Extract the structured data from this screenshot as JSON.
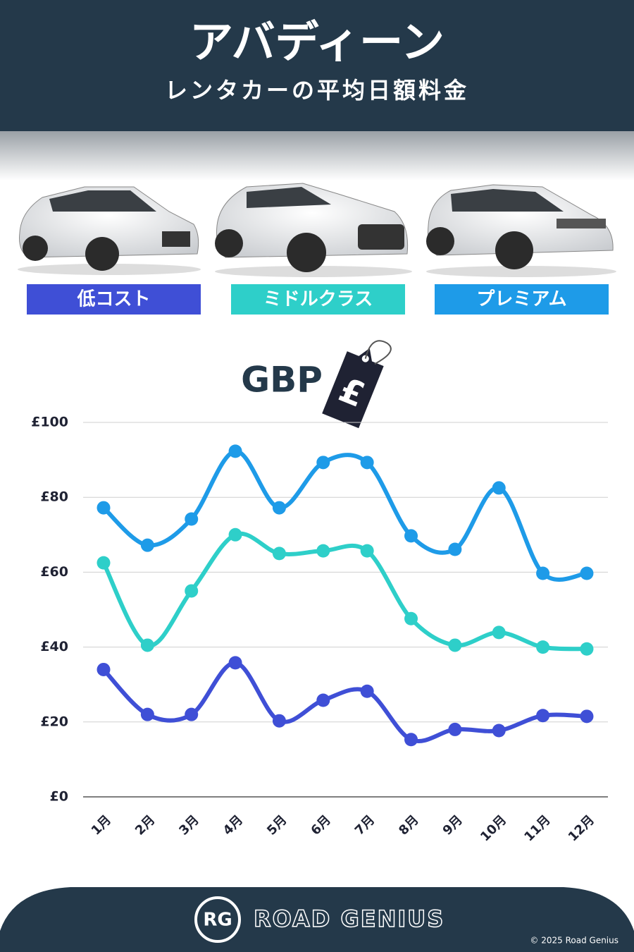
{
  "header": {
    "title": "アバディーン",
    "subtitle": "レンタカーの平均日額料金"
  },
  "chart_data": {
    "type": "line",
    "currency_label": "GBP",
    "tag_symbol": "£",
    "categories": [
      "1月",
      "2月",
      "3月",
      "4月",
      "5月",
      "6月",
      "7月",
      "8月",
      "9月",
      "10月",
      "11月",
      "12月"
    ],
    "series": [
      {
        "name": "低コスト",
        "color": "#3f4fd6",
        "values": [
          34,
          22,
          22,
          35.8,
          20.3,
          25.8,
          28.2,
          15.3,
          18,
          17.7,
          21.7,
          21.5
        ]
      },
      {
        "name": "ミドルクラス",
        "color": "#2ecfc9",
        "values": [
          62.5,
          40.5,
          55,
          70,
          65,
          65.7,
          65.7,
          47.6,
          40.5,
          43.9,
          40,
          39.5
        ]
      },
      {
        "name": "プレミアム",
        "color": "#1e9be8",
        "values": [
          77.2,
          67.2,
          74.2,
          92.3,
          77.2,
          89.3,
          89.3,
          69.7,
          66.1,
          82.5,
          59.7,
          59.7
        ]
      }
    ],
    "ylim": [
      0,
      100
    ],
    "yticks": [
      {
        "value": 0,
        "label": "£0"
      },
      {
        "value": 20,
        "label": "£20"
      },
      {
        "value": 40,
        "label": "£40"
      },
      {
        "value": 60,
        "label": "£60"
      },
      {
        "value": 80,
        "label": "£80"
      },
      {
        "value": 100,
        "label": "£100"
      }
    ],
    "grid": true,
    "smooth": true
  },
  "footer": {
    "logo": "RG",
    "brand": "ROAD GENIUS",
    "copyright": "© 2025 Road Genius"
  }
}
